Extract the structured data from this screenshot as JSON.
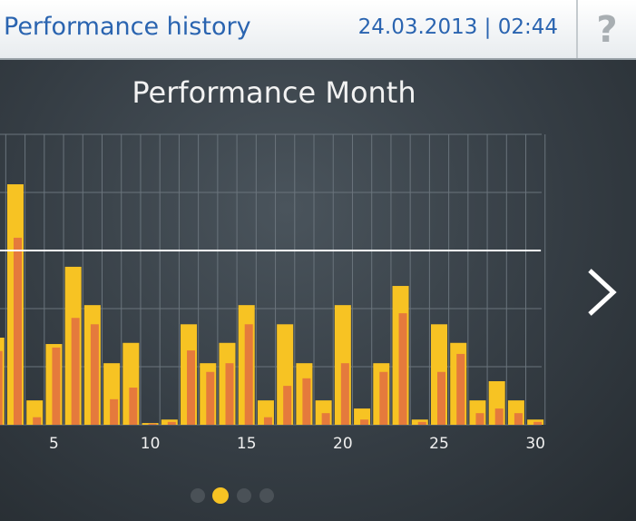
{
  "header": {
    "title": "Performance history",
    "datetime": "24.03.2013 | 02:44",
    "help": "?"
  },
  "chart_data": {
    "type": "bar",
    "title": "Performance Month",
    "x": [
      2,
      3,
      4,
      5,
      6,
      7,
      8,
      9,
      10,
      11,
      12,
      13,
      14,
      15,
      16,
      17,
      18,
      19,
      20,
      21,
      22,
      23,
      24,
      25,
      26,
      27,
      28,
      29,
      30
    ],
    "series": [
      {
        "color": "#f7c323",
        "values": [
          1.5,
          4.14,
          0.42,
          1.39,
          2.72,
          2.06,
          1.06,
          1.41,
          0.03,
          0.09,
          1.73,
          1.06,
          1.41,
          2.06,
          0.42,
          1.73,
          1.06,
          0.42,
          2.06,
          0.28,
          1.06,
          2.39,
          0.09,
          1.73,
          1.41,
          0.42,
          0.75,
          0.42,
          0.09
        ]
      },
      {
        "color": "#e57a3c",
        "values": [
          1.27,
          3.22,
          0.13,
          1.33,
          1.84,
          1.73,
          0.44,
          0.64,
          0.02,
          0.05,
          1.28,
          0.91,
          1.06,
          1.73,
          0.13,
          0.67,
          0.8,
          0.2,
          1.06,
          0.09,
          0.91,
          1.92,
          0.05,
          0.91,
          1.22,
          0.2,
          0.28,
          0.2,
          0.05
        ]
      }
    ],
    "xlim": [
      2.2,
      30.7
    ],
    "xticks": [
      5,
      10,
      15,
      20,
      25,
      30
    ],
    "ylim": [
      0,
      5
    ],
    "yticks": [
      0,
      1,
      2,
      3,
      4,
      5
    ],
    "reference_line": 3,
    "grid": true
  }
}
